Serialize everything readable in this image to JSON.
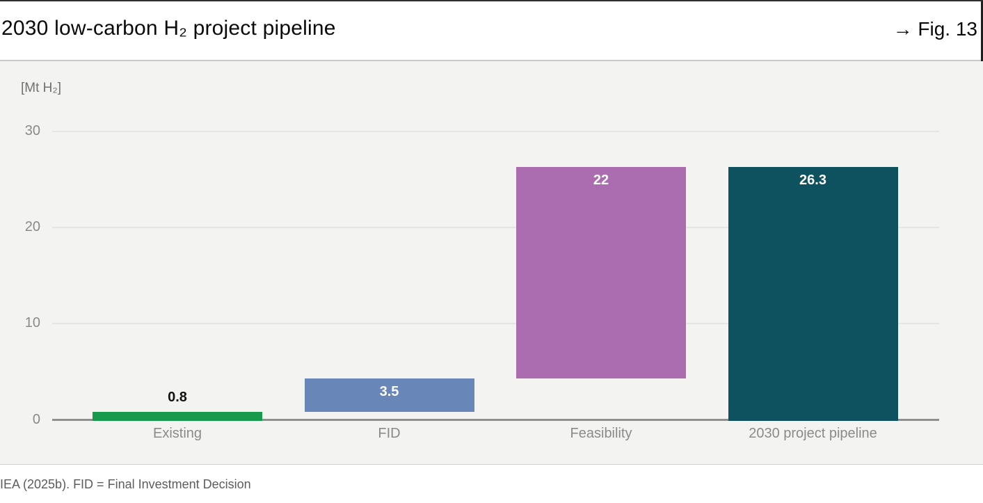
{
  "header": {
    "title": "2030 low-carbon H₂ project pipeline",
    "fig_label": "→ Fig. 13"
  },
  "chart_data": {
    "type": "bar",
    "subtype": "waterfall",
    "title": "2030 low-carbon H₂ project pipeline",
    "unit_label": "[Mt H₂]",
    "categories": [
      "Existing",
      "FID",
      "Feasibility",
      "2030 project pipeline"
    ],
    "values": [
      0.8,
      3.5,
      22,
      26.3
    ],
    "bases": [
      0,
      0.8,
      4.3,
      0
    ],
    "value_labels": [
      "0.8",
      "3.5",
      "22",
      "26.3"
    ],
    "value_label_styles": [
      "above",
      "inside",
      "inside",
      "inside"
    ],
    "bar_colors": [
      "#189a4e",
      "#6886b8",
      "#ac6cb0",
      "#0e5260"
    ],
    "yticks": [
      0,
      10,
      20,
      30
    ],
    "ylim": [
      0,
      30
    ],
    "grid": true,
    "legend": "none",
    "background_color": "#f3f3f1"
  },
  "footer": {
    "source_note": "IEA (2025b). FID = Final Investment Decision"
  }
}
